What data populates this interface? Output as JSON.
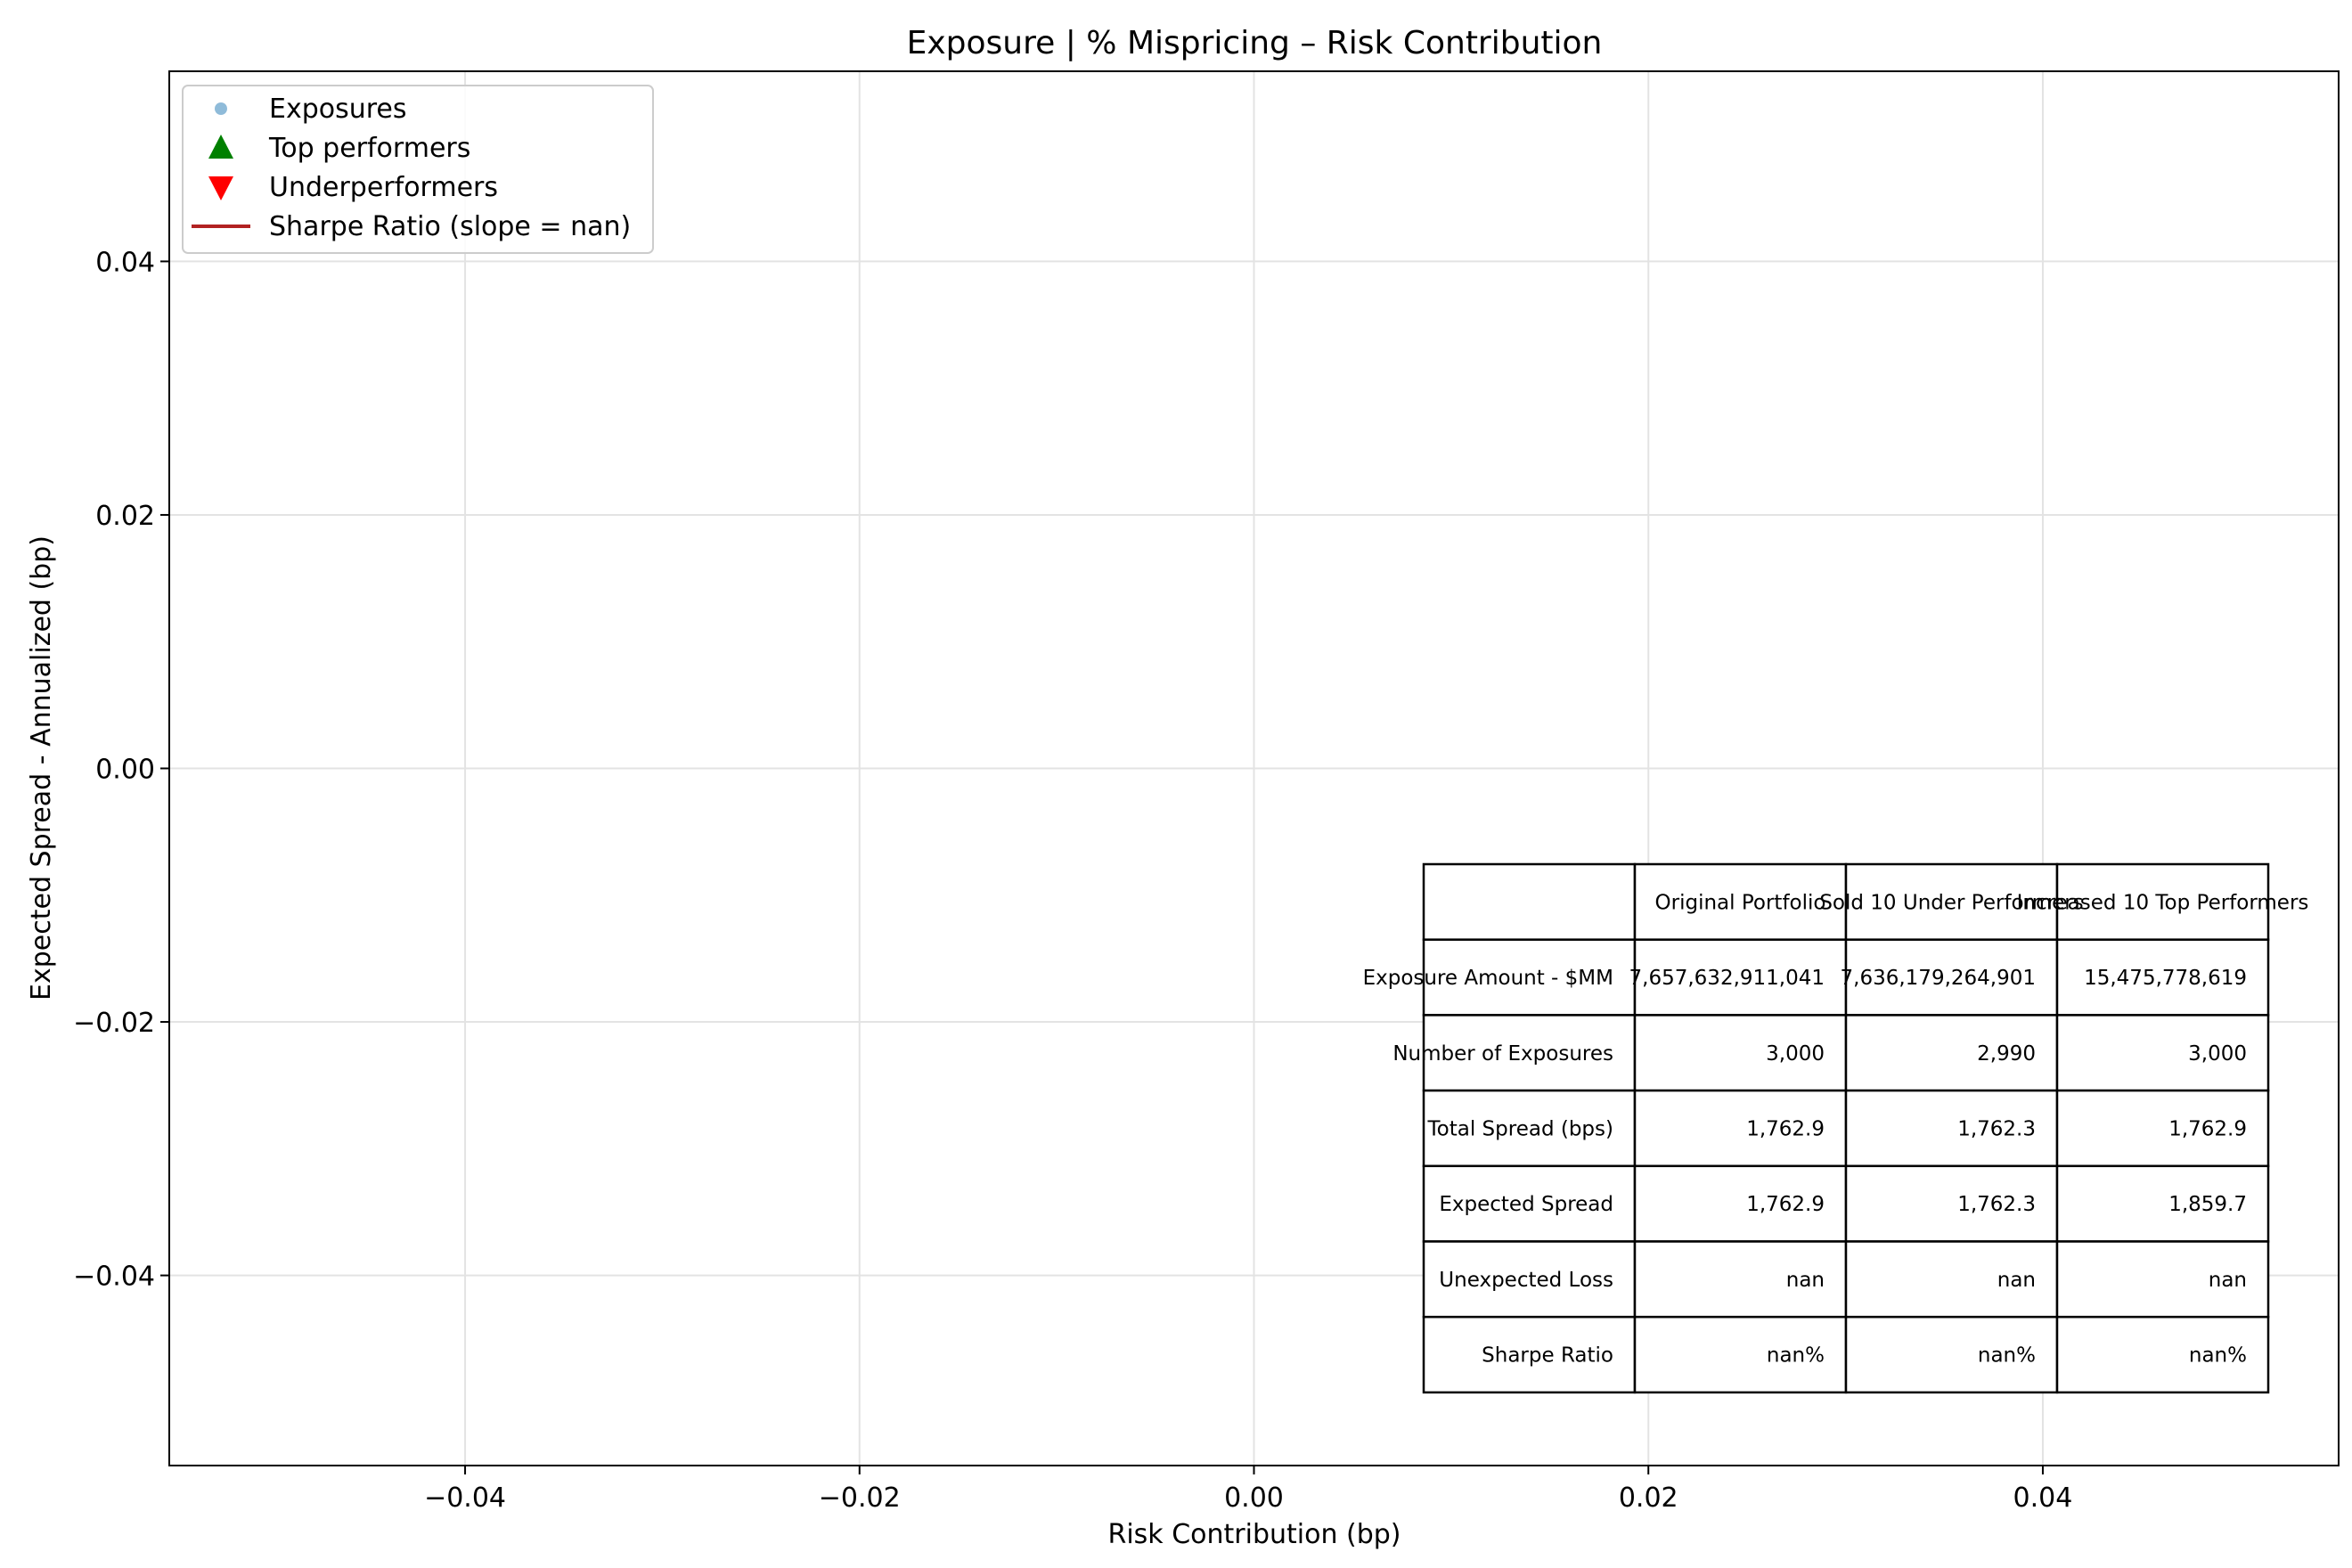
{
  "chart_data": {
    "type": "scatter",
    "title": "Exposure | % Mispricing – Risk Contribution",
    "xlabel": "Risk Contribution (bp)",
    "ylabel": "Expected Spread - Annualized (bp)",
    "xlim": [
      -0.055,
      0.055
    ],
    "ylim": [
      -0.055,
      0.055
    ],
    "xticks": [
      -0.04,
      -0.02,
      0.0,
      0.02,
      0.04
    ],
    "xtick_labels": [
      "−0.04",
      "−0.02",
      "0.00",
      "0.02",
      "0.04"
    ],
    "yticks": [
      0.04,
      0.02,
      0.0,
      -0.02,
      -0.04
    ],
    "ytick_labels": [
      "0.04",
      "0.02",
      "0.00",
      "−0.02",
      "−0.04"
    ],
    "grid": true,
    "legend_position": "top-left",
    "series": [
      {
        "name": "Exposures",
        "marker": "circle",
        "color": "#1f77b4",
        "points": []
      },
      {
        "name": "Top performers",
        "marker": "triangle-up",
        "color": "#008000",
        "points": []
      },
      {
        "name": "Underperformers",
        "marker": "triangle-down",
        "color": "#ff0000",
        "points": []
      },
      {
        "name": "Sharpe Ratio (slope = nan)",
        "marker": "line",
        "color": "#b22222",
        "points": []
      }
    ],
    "table": {
      "position": "bottom-right",
      "columns": [
        "",
        "Original Portfolio",
        "Sold 10 Under Performers",
        "Increased 10 Top Performers"
      ],
      "rows": [
        {
          "label": "Exposure Amount - $MM",
          "values": [
            "7,657,632,911,041",
            "7,636,179,264,901",
            "15,475,778,619"
          ]
        },
        {
          "label": "Number of Exposures",
          "values": [
            "3,000",
            "2,990",
            "3,000"
          ]
        },
        {
          "label": "Total Spread (bps)",
          "values": [
            "1,762.9",
            "1,762.3",
            "1,762.9"
          ]
        },
        {
          "label": "Expected Spread",
          "values": [
            "1,762.9",
            "1,762.3",
            "1,859.7"
          ]
        },
        {
          "label": "Unexpected Loss",
          "values": [
            "nan",
            "nan",
            "nan"
          ]
        },
        {
          "label": "Sharpe Ratio",
          "values": [
            "nan%",
            "nan%",
            "nan%"
          ]
        }
      ]
    }
  }
}
